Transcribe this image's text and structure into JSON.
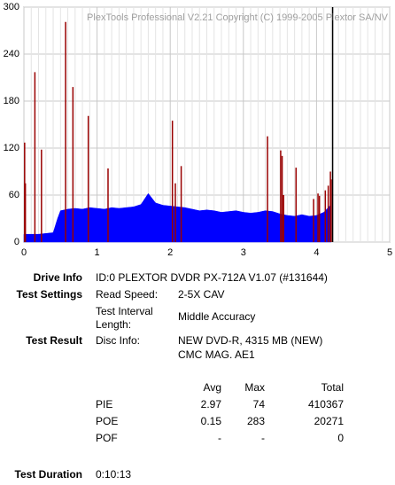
{
  "chart_data": {
    "type": "area_spikes",
    "watermark": "PlexTools Professional V2.21 Copyright (C) 1999-2005 Plextor SA/NV",
    "xlim": [
      0,
      5
    ],
    "xticks": [
      0,
      1,
      2,
      3,
      4,
      5
    ],
    "ylim": [
      0,
      300
    ],
    "yticks": [
      0,
      60,
      120,
      180,
      240,
      300
    ],
    "grid": true,
    "end_marker": 4.22,
    "series": [
      {
        "color": "#0000ff",
        "x": [
          0,
          0.1,
          0.2,
          0.3,
          0.4,
          0.46,
          0.5,
          0.6,
          0.7,
          0.8,
          0.9,
          1.0,
          1.1,
          1.2,
          1.3,
          1.4,
          1.5,
          1.6,
          1.7,
          1.8,
          1.9,
          2.0,
          2.1,
          2.2,
          2.3,
          2.4,
          2.5,
          2.6,
          2.7,
          2.8,
          2.9,
          3.0,
          3.1,
          3.2,
          3.3,
          3.4,
          3.5,
          3.6,
          3.7,
          3.8,
          3.9,
          4.0,
          4.1,
          4.2
        ],
        "values": [
          10,
          10,
          10,
          11,
          12,
          30,
          40,
          42,
          43,
          42,
          44,
          43,
          42,
          44,
          43,
          44,
          45,
          48,
          62,
          50,
          47,
          46,
          45,
          44,
          42,
          40,
          41,
          40,
          38,
          39,
          40,
          38,
          37,
          38,
          40,
          39,
          36,
          34,
          33,
          35,
          33,
          34,
          38,
          48
        ]
      },
      {
        "color": "#990000",
        "x": [
          0.01,
          0.02,
          0.15,
          0.24,
          0.57,
          0.67,
          0.88,
          1.15,
          2.03,
          2.07,
          2.15,
          3.33,
          3.51,
          3.53,
          3.55,
          3.72,
          3.96,
          4.02,
          4.04,
          4.12,
          4.16,
          4.19,
          4.2
        ],
        "values": [
          127,
          75,
          217,
          118,
          281,
          198,
          161,
          94,
          155,
          75,
          97,
          135,
          117,
          110,
          60,
          95,
          55,
          62,
          59,
          66,
          72,
          90,
          80
        ]
      }
    ]
  },
  "info": {
    "drive_info": {
      "label": "Drive Info",
      "value": "ID:0 PLEXTOR DVDR PX-712A V1.07 (#131644)"
    },
    "test_settings": {
      "label": "Test Settings",
      "items": [
        {
          "label": "Read Speed:",
          "value": "2-5X CAV"
        },
        {
          "label": "Test Interval Length:",
          "value": "Middle Accuracy"
        }
      ]
    },
    "test_result": {
      "label": "Test Result",
      "disc_info_label": "Disc Info:",
      "disc_info": [
        "NEW DVD-R, 4315 MB (NEW)",
        "CMC MAG. AE1"
      ]
    },
    "table": {
      "columns": [
        "Avg",
        "Max",
        "Total"
      ],
      "rows": [
        {
          "name": "PIE",
          "cells": [
            2.97,
            74,
            410367
          ]
        },
        {
          "name": "POE",
          "cells": [
            0.15,
            283,
            20271
          ]
        },
        {
          "name": "POF",
          "cells": [
            "-",
            "-",
            0
          ]
        }
      ]
    },
    "test_duration": {
      "label": "Test Duration",
      "value": "0:10:13"
    }
  }
}
